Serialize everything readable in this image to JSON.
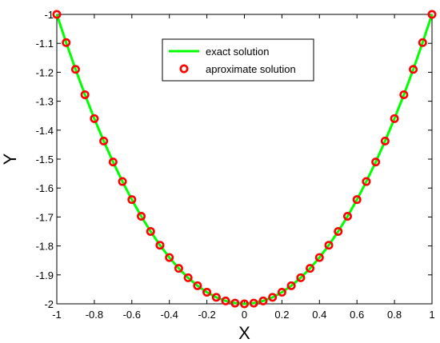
{
  "chart_data": {
    "type": "line",
    "title": "",
    "xlabel": "X",
    "ylabel": "Y",
    "xlim": [
      -1,
      1
    ],
    "ylim": [
      -2,
      -1
    ],
    "xticks": [
      -1,
      -0.8,
      -0.6,
      -0.4,
      -0.2,
      0,
      0.2,
      0.4,
      0.6,
      0.8,
      1
    ],
    "xtick_labels": [
      "-1",
      "-0.8",
      "-0.6",
      "-0.4",
      "-0.2",
      "0",
      "0.2",
      "0.4",
      "0.6",
      "0.8",
      "1"
    ],
    "yticks": [
      -2,
      -1.9,
      -1.8,
      -1.7,
      -1.6,
      -1.5,
      -1.4,
      -1.3,
      -1.2,
      -1.1,
      -1
    ],
    "ytick_labels": [
      "-2",
      "-1.9",
      "-1.8",
      "-1.7",
      "-1.6",
      "-1.5",
      "-1.4",
      "-1.3",
      "-1.2",
      "-1.1",
      "-1"
    ],
    "grid": false,
    "legend_position": "top-center",
    "series": [
      {
        "name": "exact solution",
        "style": "line",
        "color": "#00ff00",
        "x": [
          -1,
          -0.95,
          -0.9,
          -0.85,
          -0.8,
          -0.75,
          -0.7,
          -0.65,
          -0.6,
          -0.55,
          -0.5,
          -0.45,
          -0.4,
          -0.35,
          -0.3,
          -0.25,
          -0.2,
          -0.15,
          -0.1,
          -0.05,
          0,
          0.05,
          0.1,
          0.15,
          0.2,
          0.25,
          0.3,
          0.35,
          0.4,
          0.45,
          0.5,
          0.55,
          0.6,
          0.65,
          0.7,
          0.75,
          0.8,
          0.85,
          0.9,
          0.95,
          1
        ],
        "y": [
          -1.0,
          -1.0975,
          -1.19,
          -1.2775,
          -1.36,
          -1.4375,
          -1.51,
          -1.5775,
          -1.64,
          -1.6975,
          -1.75,
          -1.7975,
          -1.84,
          -1.8775,
          -1.91,
          -1.9375,
          -1.96,
          -1.9775,
          -1.99,
          -1.9975,
          -2.0,
          -1.9975,
          -1.99,
          -1.9775,
          -1.96,
          -1.9375,
          -1.91,
          -1.8775,
          -1.84,
          -1.7975,
          -1.75,
          -1.6975,
          -1.64,
          -1.5775,
          -1.51,
          -1.4375,
          -1.36,
          -1.2775,
          -1.19,
          -1.0975,
          -1.0
        ]
      },
      {
        "name": "aproximate solution",
        "style": "markers",
        "color": "#ff0000",
        "x": [
          -1,
          -0.95,
          -0.9,
          -0.85,
          -0.8,
          -0.75,
          -0.7,
          -0.65,
          -0.6,
          -0.55,
          -0.5,
          -0.45,
          -0.4,
          -0.35,
          -0.3,
          -0.25,
          -0.2,
          -0.15,
          -0.1,
          -0.05,
          0,
          0.05,
          0.1,
          0.15,
          0.2,
          0.25,
          0.3,
          0.35,
          0.4,
          0.45,
          0.5,
          0.55,
          0.6,
          0.65,
          0.7,
          0.75,
          0.8,
          0.85,
          0.9,
          0.95,
          1
        ],
        "y": [
          -1.0,
          -1.0975,
          -1.19,
          -1.2775,
          -1.36,
          -1.4375,
          -1.51,
          -1.5775,
          -1.64,
          -1.6975,
          -1.75,
          -1.7975,
          -1.84,
          -1.8775,
          -1.91,
          -1.9375,
          -1.96,
          -1.9775,
          -1.99,
          -1.9975,
          -2.0,
          -1.9975,
          -1.99,
          -1.9775,
          -1.96,
          -1.9375,
          -1.91,
          -1.8775,
          -1.84,
          -1.7975,
          -1.75,
          -1.6975,
          -1.64,
          -1.5775,
          -1.51,
          -1.4375,
          -1.36,
          -1.2775,
          -1.19,
          -1.0975,
          -1.0
        ]
      }
    ]
  }
}
